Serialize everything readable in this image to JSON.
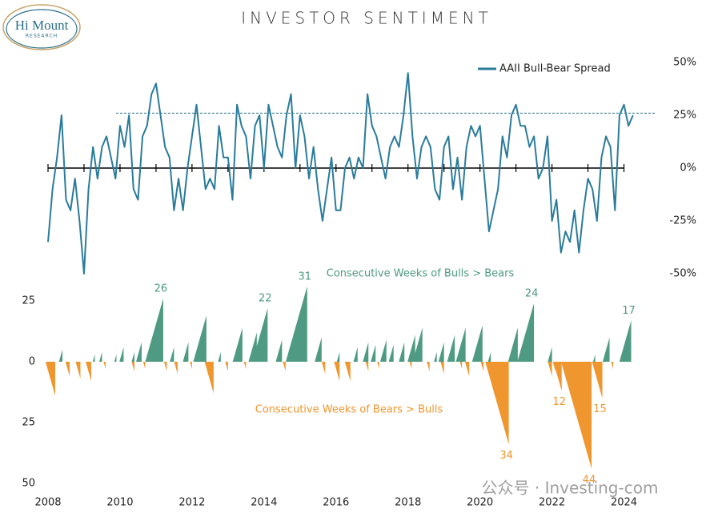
{
  "logo": {
    "name": "Hi Mount",
    "sub": "RESEARCH"
  },
  "title": "INVESTOR SENTIMENT",
  "watermark": "公众号 · Investing-com",
  "chart_data": [
    {
      "type": "line",
      "legend": "top-right",
      "x": [
        2008,
        2008.125,
        2008.25,
        2008.375,
        2008.5,
        2008.625,
        2008.75,
        2008.875,
        2009,
        2009.125,
        2009.25,
        2009.375,
        2009.5,
        2009.625,
        2009.75,
        2009.875,
        2010,
        2010.125,
        2010.25,
        2010.375,
        2010.5,
        2010.625,
        2010.75,
        2010.875,
        2011,
        2011.125,
        2011.25,
        2011.375,
        2011.5,
        2011.625,
        2011.75,
        2011.875,
        2012,
        2012.125,
        2012.25,
        2012.375,
        2012.5,
        2012.625,
        2012.75,
        2012.875,
        2013,
        2013.125,
        2013.25,
        2013.375,
        2013.5,
        2013.625,
        2013.75,
        2013.875,
        2014,
        2014.125,
        2014.25,
        2014.375,
        2014.5,
        2014.625,
        2014.75,
        2014.875,
        2015,
        2015.125,
        2015.25,
        2015.375,
        2015.5,
        2015.625,
        2015.75,
        2015.875,
        2016,
        2016.125,
        2016.25,
        2016.375,
        2016.5,
        2016.625,
        2016.75,
        2016.875,
        2017,
        2017.125,
        2017.25,
        2017.375,
        2017.5,
        2017.625,
        2017.75,
        2017.875,
        2018,
        2018.125,
        2018.25,
        2018.375,
        2018.5,
        2018.625,
        2018.75,
        2018.875,
        2019,
        2019.125,
        2019.25,
        2019.375,
        2019.5,
        2019.625,
        2019.75,
        2019.875,
        2020,
        2020.125,
        2020.25,
        2020.375,
        2020.5,
        2020.625,
        2020.75,
        2020.875,
        2021,
        2021.125,
        2021.25,
        2021.375,
        2021.5,
        2021.625,
        2021.75,
        2021.875,
        2022,
        2022.125,
        2022.25,
        2022.375,
        2022.5,
        2022.625,
        2022.75,
        2022.875,
        2023,
        2023.125,
        2023.25,
        2023.375,
        2023.5,
        2023.625,
        2023.75,
        2023.875,
        2024,
        2024.125,
        2024.25
      ],
      "series": [
        {
          "name": "AAII Bull-Bear Spread",
          "color": "#2a7b9b",
          "values": [
            -35,
            -10,
            5,
            25,
            -15,
            -20,
            -5,
            -25,
            -50,
            -10,
            10,
            -5,
            10,
            15,
            5,
            -5,
            20,
            10,
            25,
            -10,
            -15,
            15,
            20,
            35,
            40,
            25,
            10,
            5,
            -20,
            -5,
            -20,
            0,
            15,
            30,
            10,
            -10,
            -5,
            -10,
            20,
            5,
            5,
            -15,
            30,
            20,
            15,
            -5,
            20,
            25,
            0,
            30,
            20,
            10,
            5,
            25,
            35,
            0,
            25,
            15,
            -5,
            10,
            -10,
            -25,
            -10,
            5,
            -20,
            -20,
            0,
            5,
            -5,
            5,
            0,
            35,
            20,
            15,
            5,
            -5,
            10,
            15,
            10,
            25,
            45,
            15,
            -5,
            10,
            15,
            10,
            -10,
            -15,
            10,
            15,
            -10,
            5,
            -15,
            10,
            20,
            15,
            20,
            -5,
            -30,
            -20,
            -10,
            15,
            5,
            25,
            30,
            20,
            20,
            10,
            15,
            -5,
            0,
            15,
            -25,
            -15,
            -40,
            -30,
            -35,
            -20,
            -40,
            -20,
            -5,
            -10,
            -25,
            5,
            15,
            10,
            -20,
            25,
            30,
            20,
            25
          ]
        }
      ],
      "hline": 26,
      "xlim": [
        2008,
        2024.9
      ],
      "xticks": [
        2008,
        2009,
        2010,
        2011,
        2012,
        2013,
        2014,
        2015,
        2016,
        2017,
        2018,
        2019,
        2020,
        2021,
        2022,
        2023,
        2024
      ],
      "ylim": [
        -50,
        50
      ],
      "yticks": [
        {
          "value": 50,
          "label": "50%"
        },
        {
          "value": 25,
          "label": "25%"
        },
        {
          "value": 0,
          "label": "0%"
        },
        {
          "value": -25,
          "label": "-25%"
        },
        {
          "value": -50,
          "label": "-50%"
        }
      ]
    },
    {
      "type": "bar",
      "series": [
        {
          "name": "Consecutive Weeks of Bulls > Bears",
          "color": "#4e9a82",
          "x": [
            2008.4,
            2009.3,
            2009.5,
            2009.9,
            2010.1,
            2010.4,
            2010.6,
            2011.2,
            2011.5,
            2011.9,
            2012.4,
            2012.8,
            2013.4,
            2013.8,
            2014.1,
            2014.5,
            2014.8,
            2015.2,
            2015.6,
            2016.1,
            2016.6,
            2016.9,
            2017.1,
            2017.4,
            2017.6,
            2017.9,
            2018.2,
            2018.4,
            2018.8,
            2019.0,
            2019.3,
            2019.6,
            2020.07,
            2020.3,
            2021.05,
            2021.5,
            2022.0,
            2023.2,
            2023.6,
            2024.2
          ],
          "values": [
            5,
            3,
            4,
            3,
            6,
            4,
            8,
            26,
            6,
            8,
            19,
            4,
            14,
            12,
            22,
            9,
            7,
            31,
            10,
            4,
            6,
            8,
            7,
            9,
            7,
            8,
            11,
            14,
            4,
            8,
            11,
            14,
            15,
            4,
            14,
            24,
            6,
            3,
            10,
            17
          ],
          "value_labels": [
            null,
            null,
            null,
            null,
            null,
            null,
            null,
            "26",
            null,
            null,
            null,
            null,
            null,
            null,
            "22",
            null,
            null,
            "31",
            null,
            null,
            null,
            null,
            null,
            null,
            null,
            null,
            null,
            null,
            null,
            null,
            null,
            null,
            null,
            null,
            null,
            "24",
            null,
            null,
            null,
            "17"
          ]
        },
        {
          "name": "Consecutive Weeks of Bears > Bulls",
          "color": "#f0962e",
          "x": [
            2008.2,
            2008.6,
            2008.9,
            2009.2,
            2009.6,
            2010.4,
            2010.7,
            2011.3,
            2011.6,
            2012.0,
            2012.6,
            2013.0,
            2013.5,
            2014.6,
            2015.7,
            2016.1,
            2016.4,
            2016.9,
            2017.2,
            2018.1,
            2018.6,
            2019.0,
            2019.5,
            2019.7,
            2020.1,
            2020.8,
            2022.0,
            2022.1,
            2022.27,
            2023.1,
            2023.4,
            2023.7
          ],
          "values": [
            -14,
            -6,
            -7,
            -8,
            -3,
            -4,
            -3,
            -4,
            -5,
            -3,
            -13,
            -4,
            -3,
            -4,
            -5,
            -8,
            -8,
            -4,
            -3,
            -3,
            -4,
            -5,
            -3,
            -6,
            -4,
            -34,
            -6,
            -4,
            -12,
            -44,
            -15,
            -3
          ],
          "value_labels": [
            null,
            null,
            null,
            null,
            null,
            null,
            null,
            null,
            null,
            null,
            null,
            null,
            null,
            null,
            null,
            null,
            null,
            null,
            null,
            null,
            null,
            null,
            null,
            null,
            null,
            "34",
            null,
            null,
            "12",
            "44",
            "15",
            null
          ]
        }
      ],
      "xlim": [
        2008,
        2024.9
      ],
      "xticks": [
        2008,
        2010,
        2012,
        2014,
        2016,
        2018,
        2020,
        2022,
        2024
      ],
      "ylim": [
        -50,
        25
      ],
      "yticks": [
        25,
        0,
        {
          "value": -25,
          "label": "25"
        },
        {
          "value": -50,
          "label": "50"
        }
      ]
    }
  ]
}
